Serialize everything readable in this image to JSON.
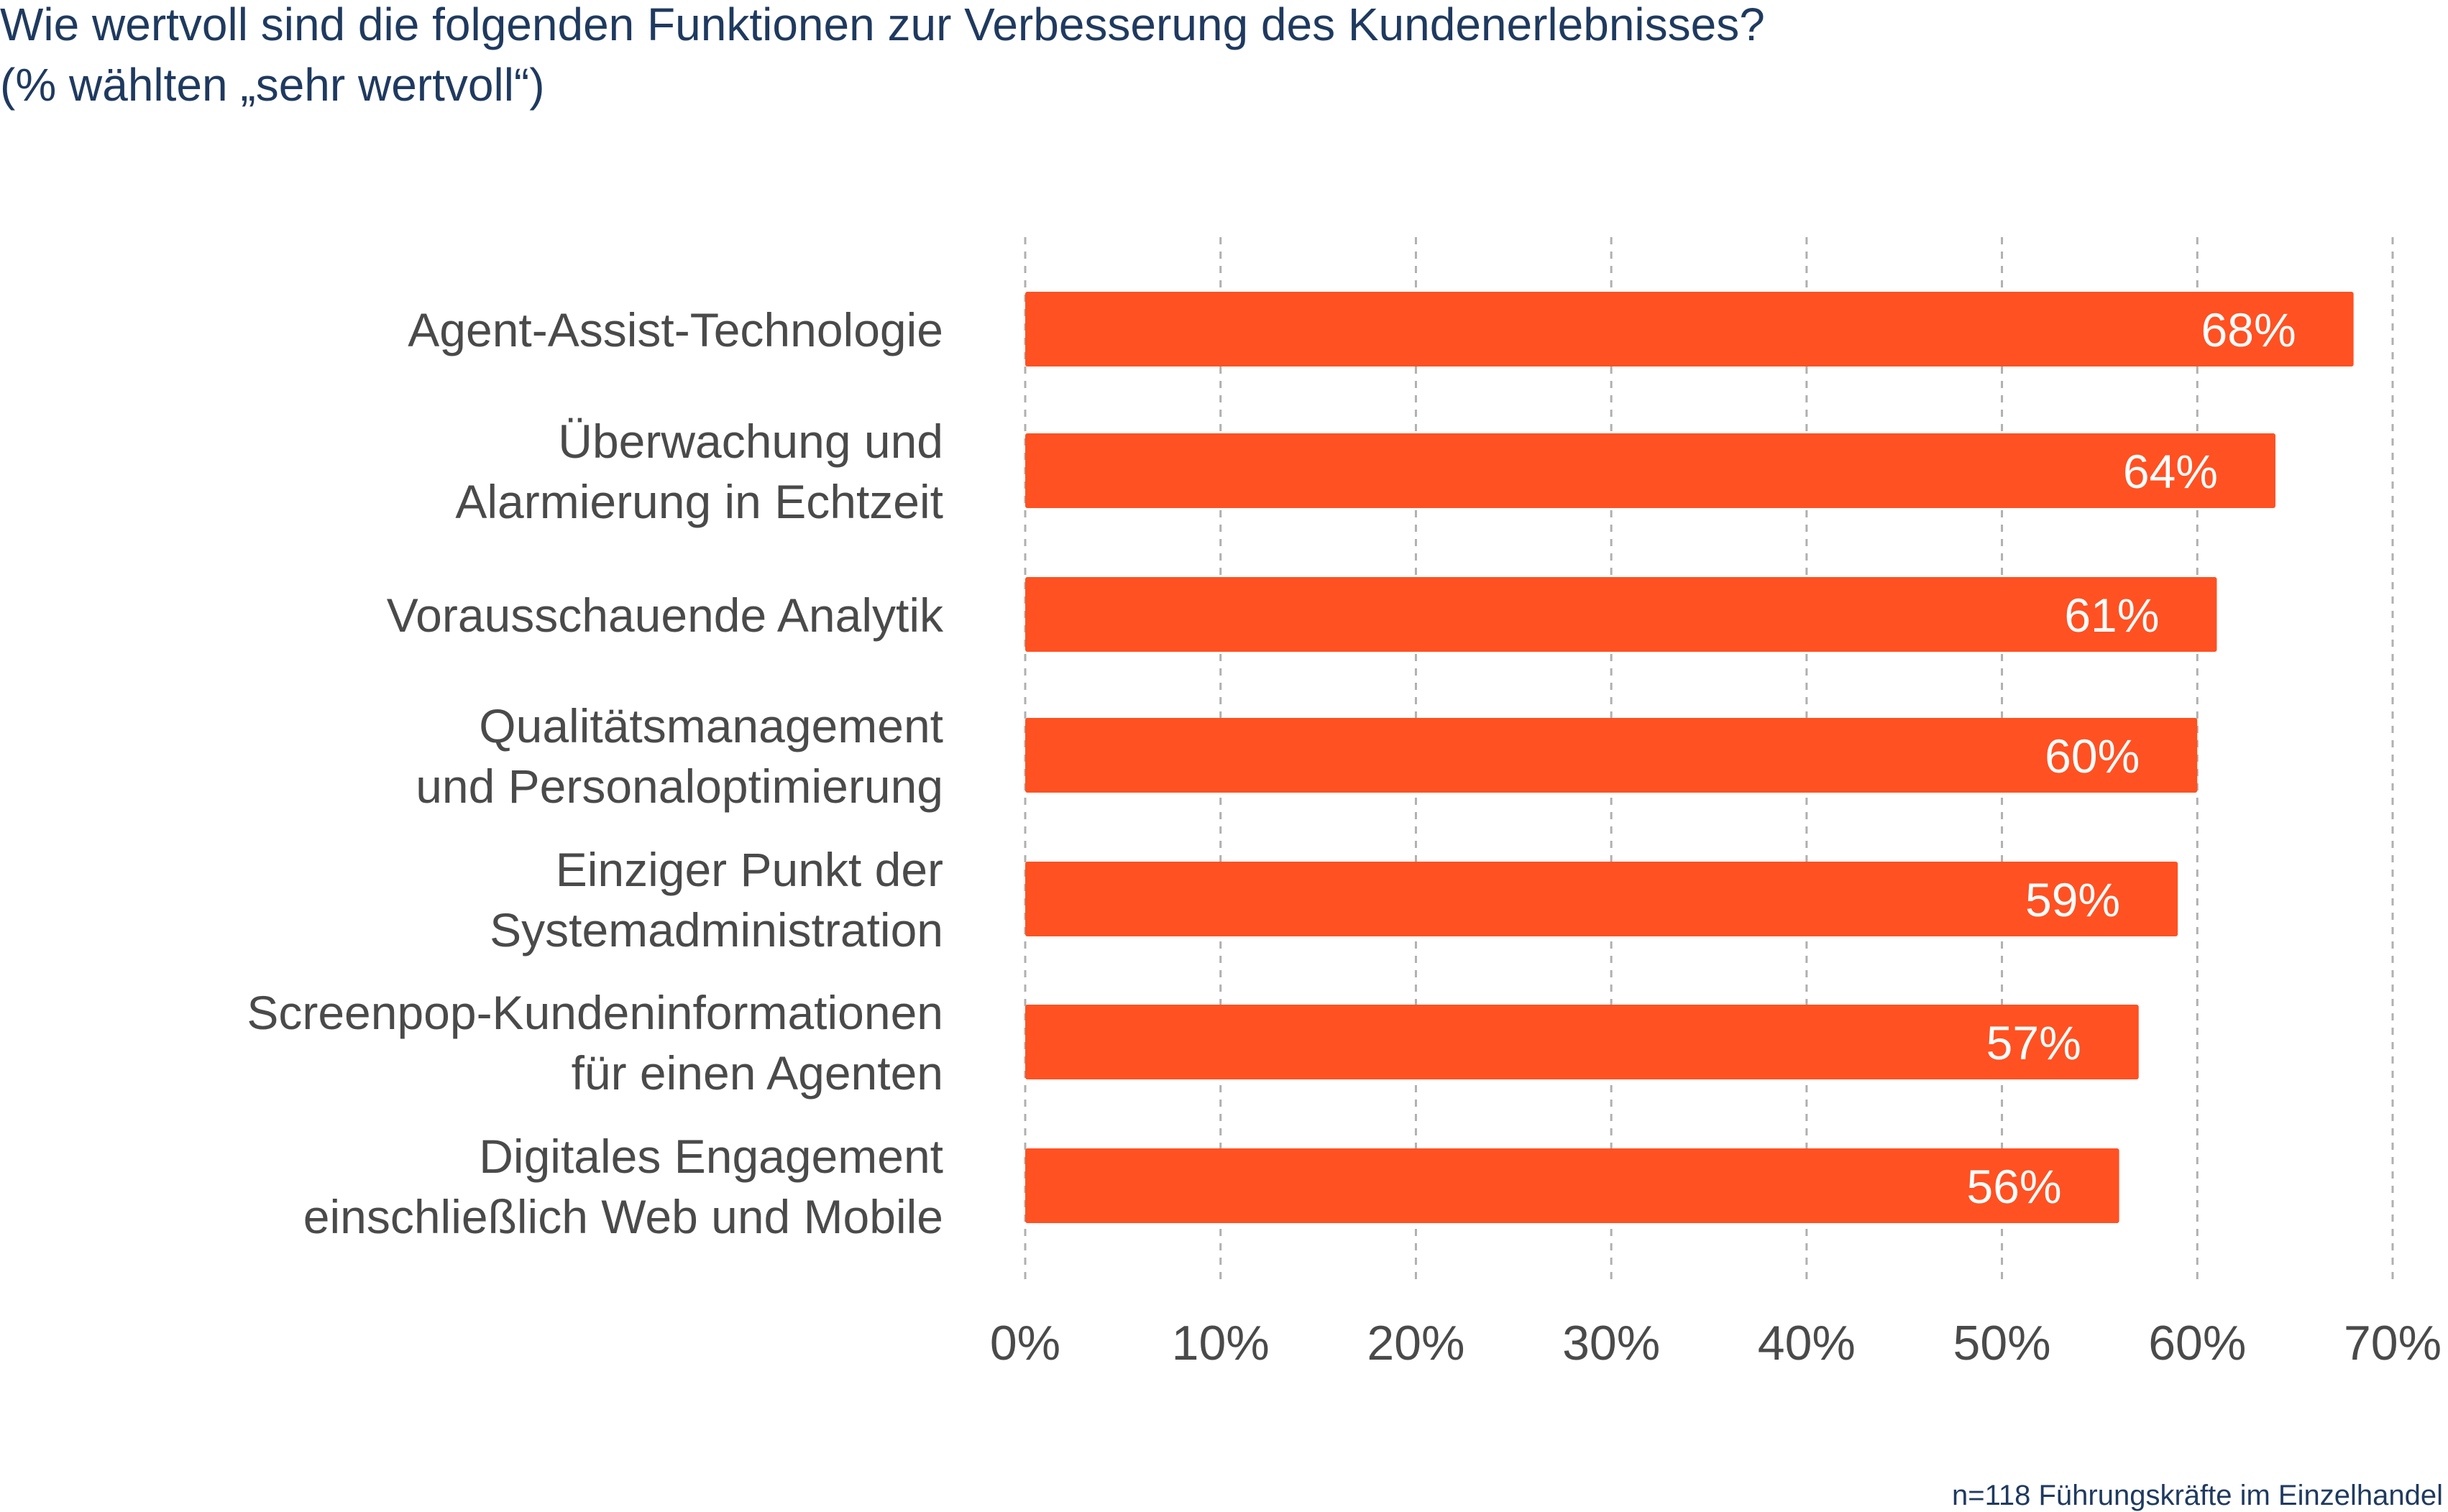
{
  "chart_data": {
    "type": "bar",
    "orientation": "horizontal",
    "title": "Wie wertvoll sind die folgenden Funktionen zur Verbesserung des Kundenerlebnisses?",
    "subtitle": "(% wählten „sehr wertvoll“)",
    "categories": [
      [
        "Agent-Assist-Technologie"
      ],
      [
        "Überwachung und",
        "Alarmierung in Echtzeit"
      ],
      [
        "Vorausschauende Analytik"
      ],
      [
        "Qualitätsmanagement",
        "und Personaloptimierung"
      ],
      [
        "Einziger Punkt der",
        "Systemadministration"
      ],
      [
        "Screenpop-Kundeninformationen",
        "für einen Agenten"
      ],
      [
        "Digitales Engagement",
        "einschließlich Web und Mobile"
      ]
    ],
    "values": [
      68,
      64,
      61,
      60,
      59,
      57,
      56
    ],
    "value_labels": [
      "68%",
      "64%",
      "61%",
      "60%",
      "59%",
      "57%",
      "56%"
    ],
    "xlim": [
      0,
      70
    ],
    "x_ticks": [
      "0%",
      "10%",
      "20%",
      "30%",
      "40%",
      "50%",
      "60%",
      "70%"
    ],
    "grid": "vertical dashed",
    "xlabel": "",
    "ylabel": "",
    "colors": {
      "bar": "#ff5122",
      "title": "#1f3a5f",
      "labels": "#4a4a4a",
      "grid": "#b0b0b0"
    }
  },
  "footnote": "n=118 Führungskräfte im Einzelhandel"
}
